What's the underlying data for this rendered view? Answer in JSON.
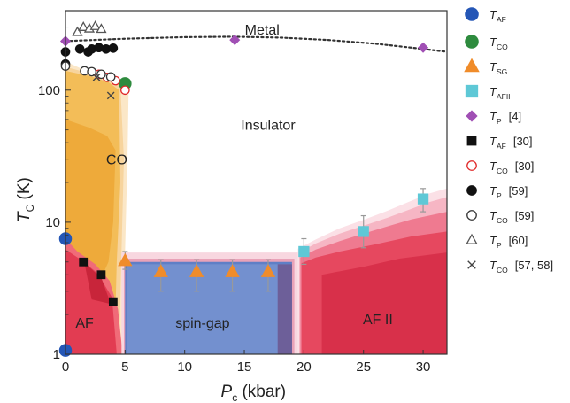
{
  "chart_data": {
    "type": "scatter",
    "xlabel": "P",
    "xlabel_sub": "c",
    "xlabel_unit": "(kbar)",
    "ylabel": "T",
    "ylabel_sub": "C",
    "ylabel_unit": "(K)",
    "xlim": [
      0,
      32
    ],
    "ylim": [
      1,
      400
    ],
    "yscale": "log",
    "x_ticks": [
      0,
      5,
      10,
      15,
      20,
      25,
      30
    ],
    "y_ticks": [
      {
        "value": 1,
        "label": "1"
      },
      {
        "value": 10,
        "label": "10"
      },
      {
        "value": 100,
        "label": "100"
      }
    ],
    "region_labels": [
      {
        "text": "Metal",
        "x": 16.5,
        "y": 290
      },
      {
        "text": "Insulator",
        "x": 17,
        "y": 55
      },
      {
        "text": "CO",
        "x": 4.3,
        "y": 30
      },
      {
        "text": "spin-gap",
        "x": 11.5,
        "y": 1.75
      },
      {
        "text": "AF",
        "x": 1.6,
        "y": 1.75
      },
      {
        "text": "AF II",
        "x": 26.2,
        "y": 1.85
      }
    ],
    "metal_insulator_line": {
      "x": [
        0,
        5,
        10,
        14,
        18,
        22,
        26,
        30,
        32
      ],
      "y": [
        235,
        245,
        252,
        254,
        250,
        240,
        225,
        205,
        195
      ]
    },
    "series": [
      {
        "name": "T",
        "sub": "AF",
        "ref": "",
        "marker": "circle",
        "color": "#2456b6",
        "fill": true,
        "x": [
          0,
          0
        ],
        "y": [
          7.5,
          1.07
        ]
      },
      {
        "name": "T",
        "sub": "CO",
        "ref": "",
        "marker": "circle",
        "color": "#2e8b3e",
        "fill": true,
        "x": [
          5
        ],
        "y": [
          112
        ]
      },
      {
        "name": "T",
        "sub": "SG",
        "ref": "",
        "marker": "triangle",
        "color": "#f08c2a",
        "fill": true,
        "x": [
          5,
          8,
          11,
          14,
          17
        ],
        "y": [
          5.1,
          4.2,
          4.2,
          4.2,
          4.2
        ],
        "err": [
          [
            4.4,
            6.0
          ],
          [
            3.0,
            5.2
          ],
          [
            3.0,
            5.2
          ],
          [
            3.0,
            5.2
          ],
          [
            3.0,
            5.2
          ]
        ]
      },
      {
        "name": "T",
        "sub": "AFII",
        "ref": "",
        "marker": "square",
        "color": "#5ec8d6",
        "fill": true,
        "x": [
          20,
          25,
          30
        ],
        "y": [
          6.0,
          8.5,
          15
        ],
        "err": [
          [
            4.8,
            7.5
          ],
          [
            6.4,
            11.2
          ],
          [
            12,
            18
          ]
        ]
      },
      {
        "name": "T",
        "sub": "P",
        "ref": "[4]",
        "marker": "diamond",
        "color": "#a04fb4",
        "fill": true,
        "x": [
          0,
          14.2,
          30
        ],
        "y": [
          235,
          240,
          210
        ]
      },
      {
        "name": "T",
        "sub": "AF",
        "ref": "[30]",
        "marker": "square",
        "color": "#111111",
        "fill": true,
        "x": [
          1.5,
          3,
          4
        ],
        "y": [
          5.0,
          4.0,
          2.5
        ]
      },
      {
        "name": "T",
        "sub": "CO",
        "ref": "[30]",
        "marker": "circle",
        "color": "#e02828",
        "fill": false,
        "x": [
          2.8,
          3.5,
          4.2,
          5
        ],
        "y": [
          132,
          125,
          118,
          100
        ]
      },
      {
        "name": "T",
        "sub": "P",
        "ref": "[59]",
        "marker": "circle",
        "color": "#111111",
        "fill": true,
        "x": [
          0,
          0,
          1.2,
          1.9,
          2.2,
          2.8,
          3.4,
          4.0
        ],
        "y": [
          195,
          158,
          205,
          195,
          205,
          210,
          205,
          208
        ]
      },
      {
        "name": "T",
        "sub": "CO",
        "ref": "[59]",
        "marker": "circle",
        "color": "#333333",
        "fill": false,
        "x": [
          0,
          1.6,
          2.2,
          3.0,
          3.8
        ],
        "y": [
          152,
          140,
          138,
          132,
          126
        ]
      },
      {
        "name": "T",
        "sub": "P",
        "ref": "[60]",
        "marker": "triangle",
        "color": "#555555",
        "fill": false,
        "x": [
          1.0,
          1.5,
          2.0,
          2.5,
          3.0
        ],
        "y": [
          275,
          300,
          292,
          305,
          290
        ]
      },
      {
        "name": "T",
        "sub": "CO",
        "ref": "[57, 58]",
        "marker": "cross",
        "color": "#444444",
        "fill": false,
        "x": [
          2.6,
          3.8
        ],
        "y": [
          125,
          91
        ]
      }
    ],
    "legend_position": "right"
  }
}
